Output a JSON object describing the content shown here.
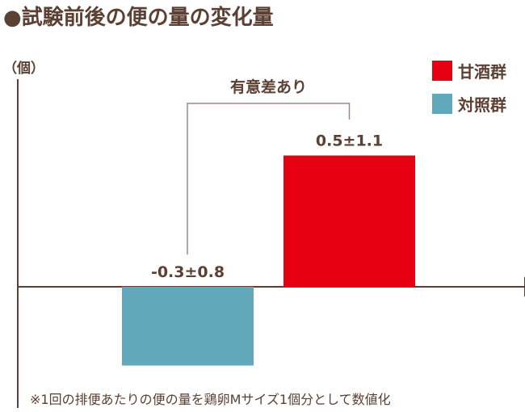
{
  "page_title": "●試験前後の便の量の変化量",
  "footnote": "※1回の排便あたりの便の量を鶏卵Mサイズ1個分として数値化",
  "chart_data": {
    "type": "bar",
    "title": "試験前後の便の量の変化量",
    "ylabel": "（個）",
    "xlabel": "",
    "categories": [
      "対照群",
      "甘酒群"
    ],
    "values": [
      -0.3,
      0.5
    ],
    "errors": [
      0.8,
      1.1
    ],
    "value_labels": [
      "-0.3±0.8",
      "0.5±1.1"
    ],
    "ylim": [
      -0.65,
      1.6
    ],
    "legend": {
      "position": "top-right",
      "entries": [
        {
          "label": "甘酒群",
          "color": "#e60012"
        },
        {
          "label": "対照群",
          "color": "#62a8bb"
        }
      ]
    },
    "significance_label": "有意差あり",
    "grid": false
  },
  "colors": {
    "text": "#5b4033",
    "amazake": "#e60012",
    "control": "#62a8bb",
    "axis": "#5b4033",
    "bracket": "#9a8a82"
  }
}
